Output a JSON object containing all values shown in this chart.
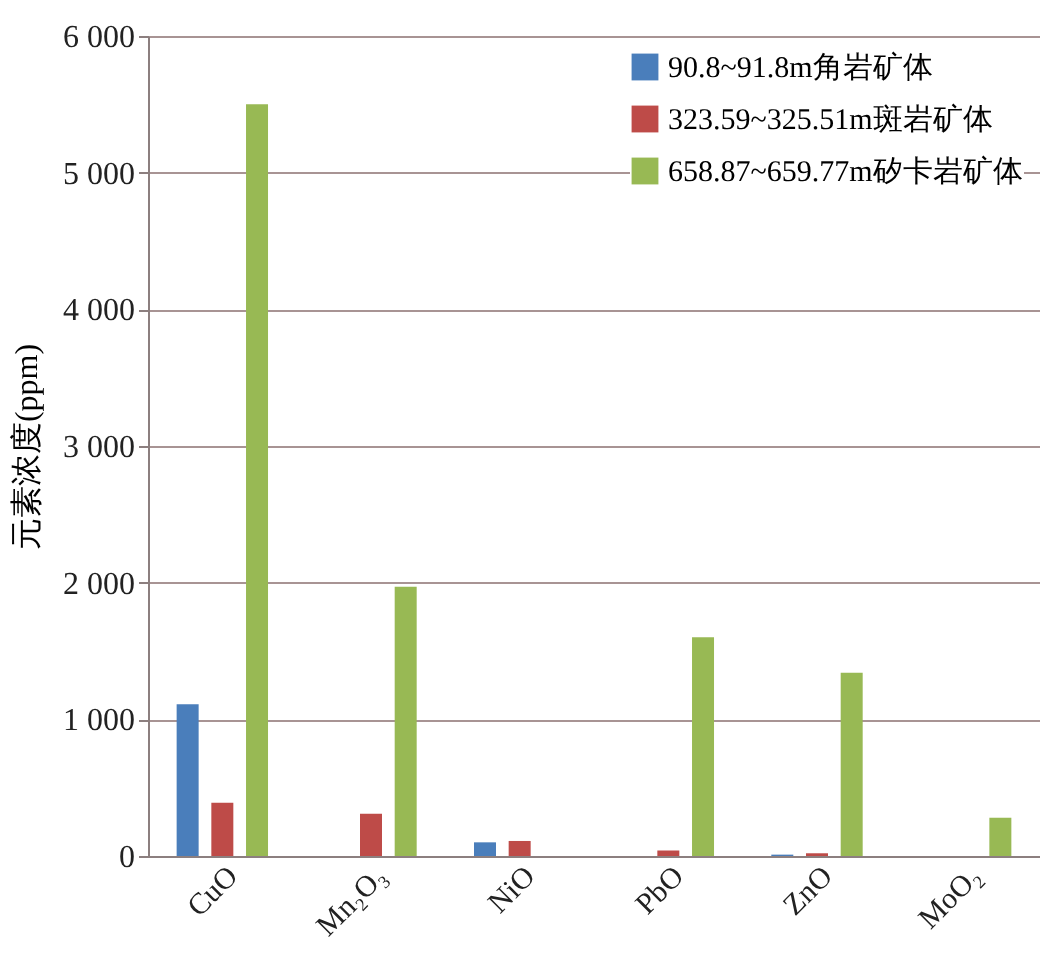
{
  "chart_data": {
    "type": "bar",
    "ylabel": "元素浓度(ppm)",
    "categories": [
      "CuO",
      "Mn₂O₃",
      "NiO",
      "PbO",
      "ZnO",
      "MoO₂"
    ],
    "series": [
      {
        "name": "90.8~91.8m角岩矿体",
        "color": "#4a7ebb",
        "values": [
          1110,
          0,
          100,
          0,
          10,
          0
        ]
      },
      {
        "name": "323.59~325.51m斑岩矿体",
        "color": "#be4b48",
        "values": [
          390,
          310,
          110,
          40,
          20,
          0
        ]
      },
      {
        "name": "658.87~659.77m矽卡岩矿体",
        "color": "#98b954",
        "values": [
          5500,
          1970,
          0,
          1600,
          1340,
          280
        ]
      }
    ],
    "ylim": [
      0,
      6000
    ],
    "yticks": [
      {
        "value": 0,
        "label": "0"
      },
      {
        "value": 1000,
        "label": "1 000"
      },
      {
        "value": 2000,
        "label": "2 000"
      },
      {
        "value": 3000,
        "label": "3 000"
      },
      {
        "value": 4000,
        "label": "4 000"
      },
      {
        "value": 5000,
        "label": "5 000"
      },
      {
        "value": 6000,
        "label": "6 000"
      }
    ],
    "grid": "y",
    "legend": "top right"
  }
}
